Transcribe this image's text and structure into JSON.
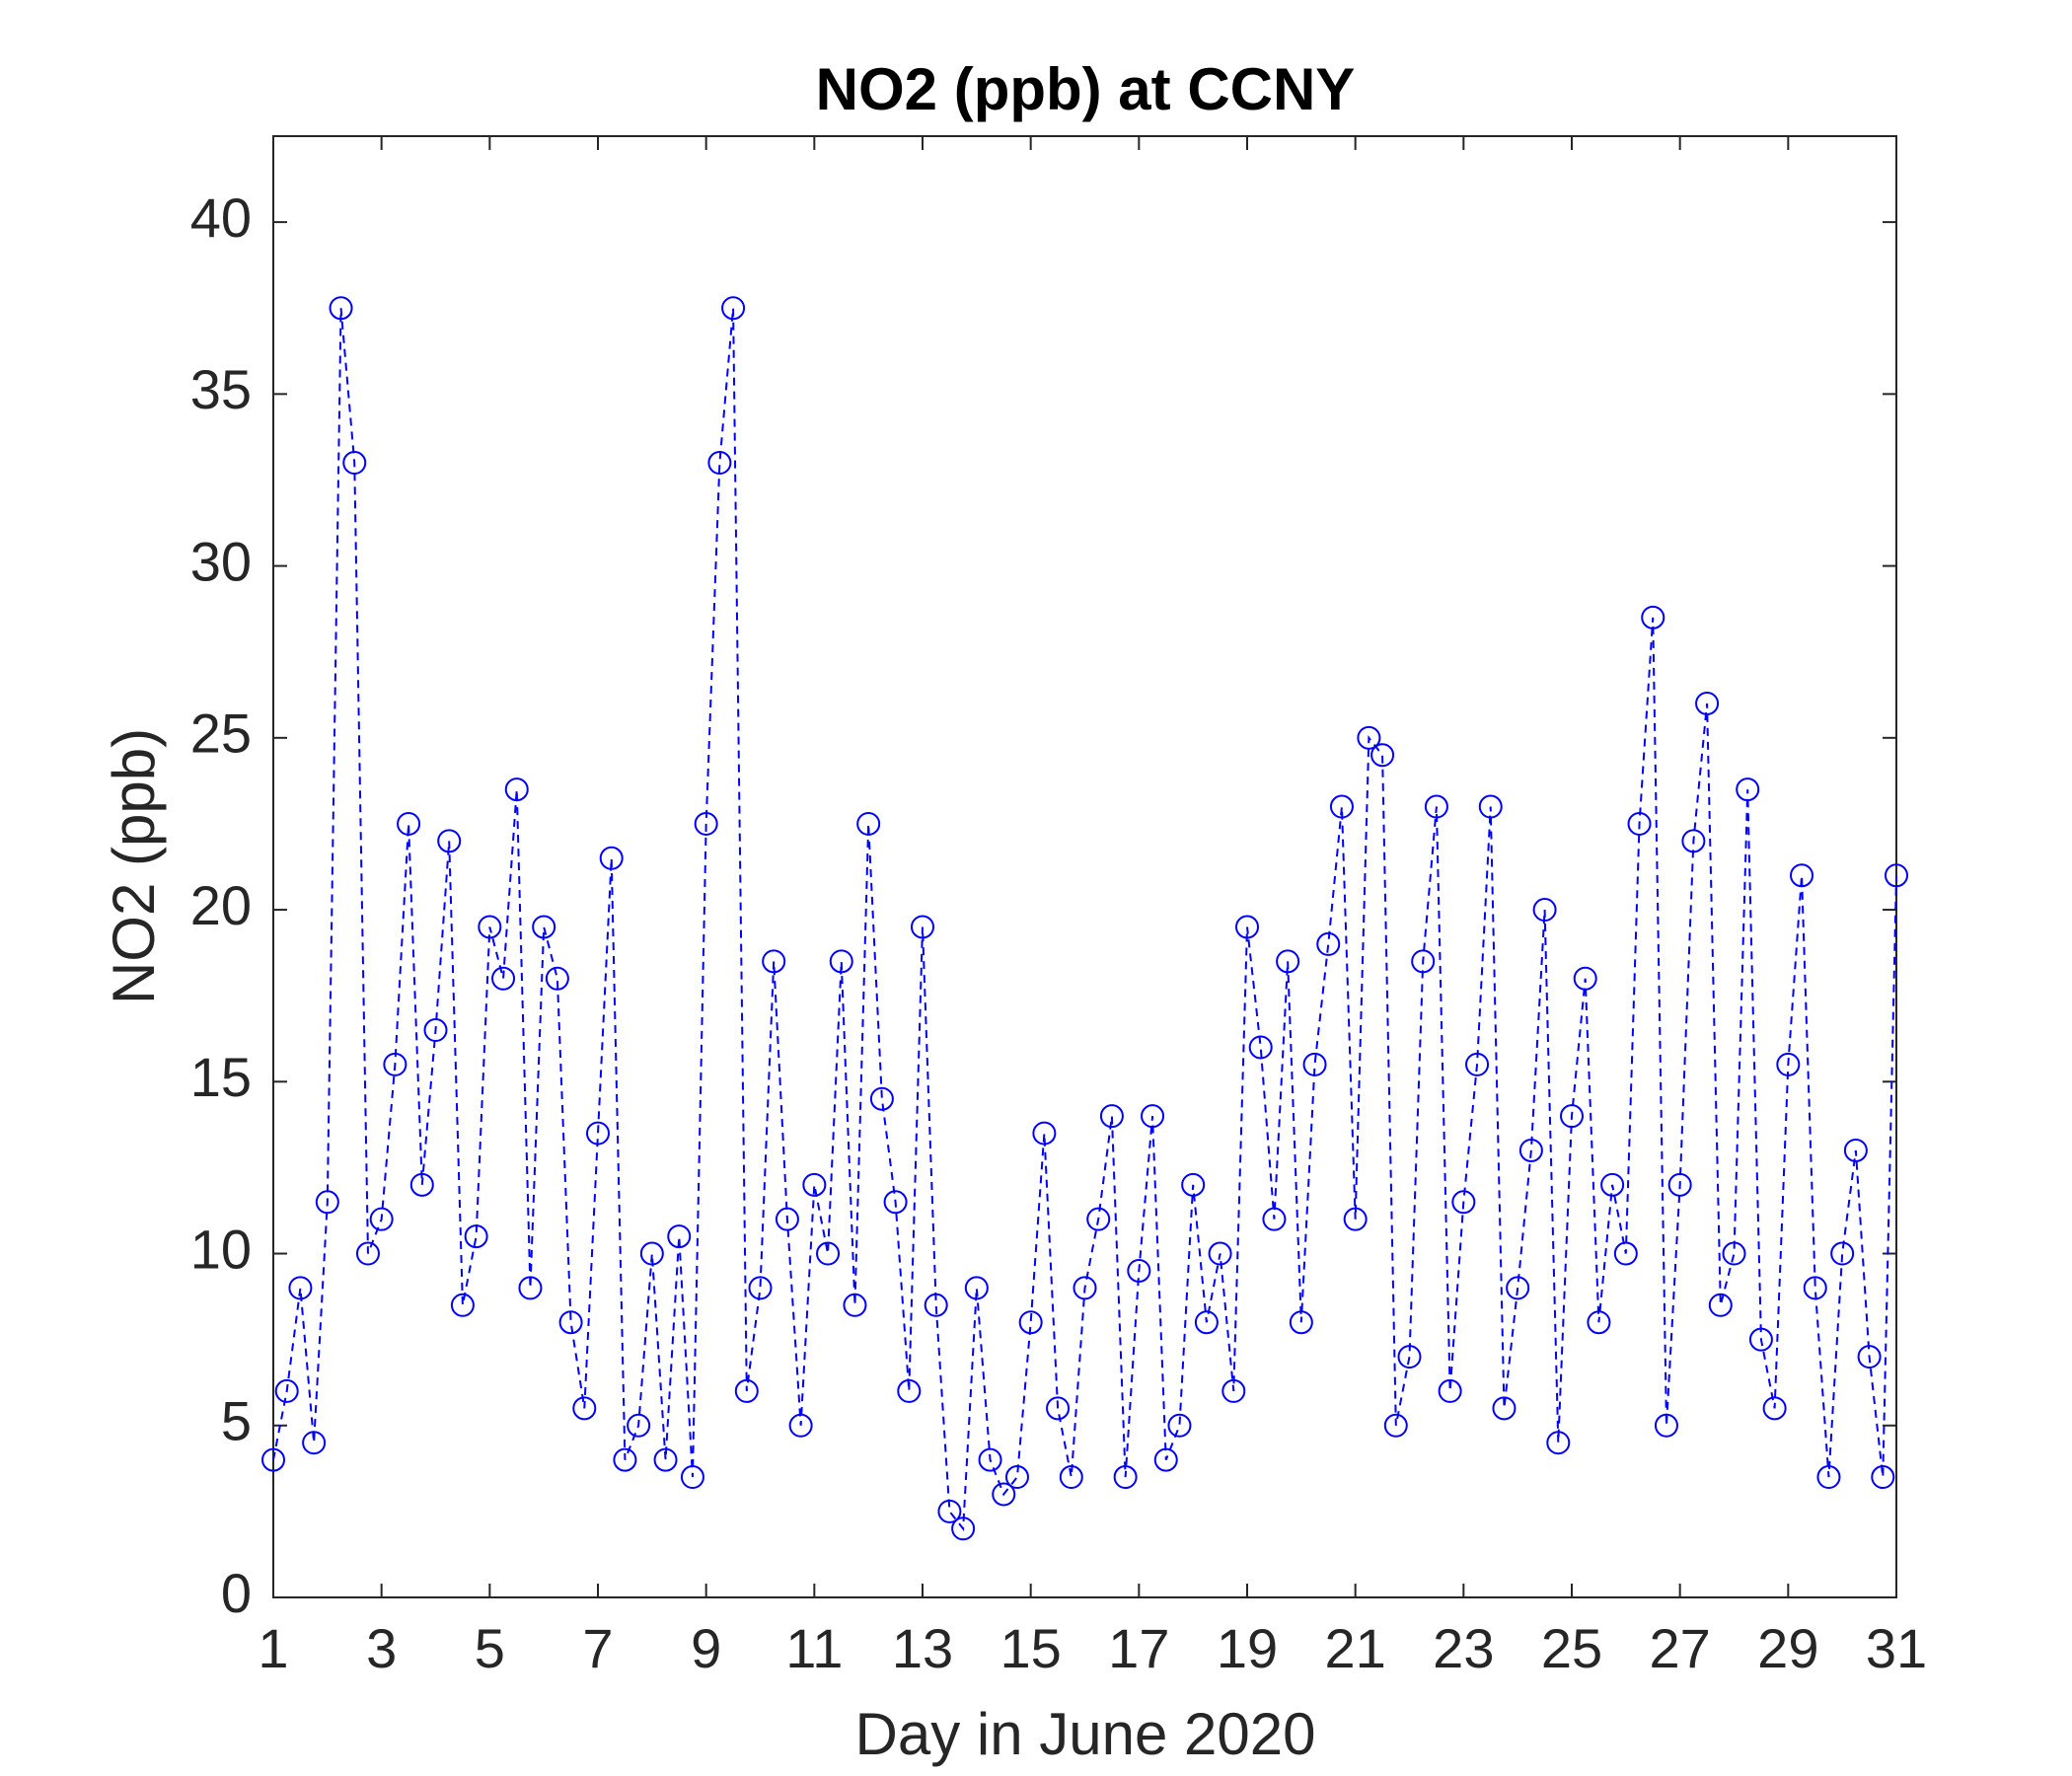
{
  "chart_data": {
    "type": "line",
    "title": "NO2 (ppb) at CCNY",
    "xlabel": "Day in June 2020",
    "ylabel": "NO2 (ppb)",
    "xlim": [
      1,
      31
    ],
    "xticks": [
      1,
      3,
      5,
      7,
      9,
      11,
      13,
      15,
      17,
      19,
      21,
      23,
      25,
      27,
      29,
      31
    ],
    "ylim": [
      0,
      42.5
    ],
    "yticks": [
      0,
      5,
      10,
      15,
      20,
      25,
      30,
      35,
      40
    ],
    "grid": false,
    "box": true,
    "line_style": "dashed",
    "marker": "circle",
    "x": [
      1,
      1.25,
      1.5,
      1.75,
      2,
      2.25,
      2.5,
      2.75,
      3,
      3.25,
      3.5,
      3.75,
      4,
      4.25,
      4.5,
      4.75,
      5,
      5.25,
      5.5,
      5.75,
      6,
      6.25,
      6.5,
      6.75,
      7,
      7.25,
      7.5,
      7.75,
      8,
      8.25,
      8.5,
      8.75,
      9,
      9.25,
      9.5,
      9.75,
      10,
      10.25,
      10.5,
      10.75,
      11,
      11.25,
      11.5,
      11.75,
      12,
      12.25,
      12.5,
      12.75,
      13,
      13.25,
      13.5,
      13.75,
      14,
      14.25,
      14.5,
      14.75,
      15,
      15.25,
      15.5,
      15.75,
      16,
      16.25,
      16.5,
      16.75,
      17,
      17.25,
      17.5,
      17.75,
      18,
      18.25,
      18.5,
      18.75,
      19,
      19.25,
      19.5,
      19.75,
      20,
      20.25,
      20.5,
      20.75,
      21,
      21.25,
      21.5,
      21.75,
      22,
      22.25,
      22.5,
      22.75,
      23,
      23.25,
      23.5,
      23.75,
      24,
      24.25,
      24.5,
      24.75,
      25,
      25.25,
      25.5,
      25.75,
      26,
      26.25,
      26.5,
      26.75,
      27,
      27.25,
      27.5,
      27.75,
      28,
      28.25,
      28.5,
      28.75,
      29,
      29.25,
      29.5,
      29.75,
      30,
      30.25,
      30.5,
      30.75,
      31
    ],
    "series": [
      {
        "name": "NO2",
        "color": "#0000ff",
        "values": [
          4,
          6,
          9,
          4.5,
          11.5,
          37.5,
          33,
          10,
          11,
          15.5,
          22.5,
          12,
          16.5,
          22,
          8.5,
          10.5,
          19.5,
          18,
          23.5,
          9,
          19.5,
          18,
          8,
          5.5,
          13.5,
          21.5,
          4,
          5,
          10,
          4,
          10.5,
          3.5,
          22.5,
          33,
          37.5,
          6,
          9,
          18.5,
          11,
          5,
          12,
          10,
          18.5,
          8.5,
          22.5,
          14.5,
          11.5,
          6,
          19.5,
          8.5,
          2.5,
          2,
          9,
          4,
          3,
          3.5,
          8,
          13.5,
          5.5,
          3.5,
          9,
          11,
          14,
          3.5,
          9.5,
          14,
          4,
          5,
          12,
          8,
          10,
          6,
          19.5,
          16,
          11,
          18.5,
          8,
          15.5,
          19,
          23,
          11,
          25,
          24.5,
          5,
          7,
          18.5,
          23,
          6,
          11.5,
          15.5,
          23,
          5.5,
          9,
          13,
          20,
          4.5,
          14,
          18,
          8,
          12,
          10,
          22.5,
          28.5,
          5,
          12,
          22,
          26,
          8.5,
          10,
          23.5,
          7.5,
          5.5,
          15.5,
          21,
          9,
          3.5,
          10,
          13,
          7,
          3.5,
          21
        ]
      }
    ]
  }
}
